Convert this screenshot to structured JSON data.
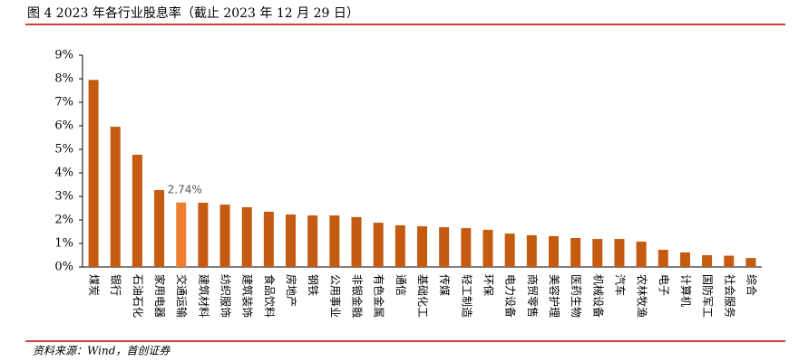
{
  "chart_data": {
    "type": "bar",
    "title": "图 4 2023 年各行业股息率（截止 2023 年 12 月 29 日）",
    "source": "资料来源：Wind，首创证券",
    "categories": [
      "煤炭",
      "银行",
      "石油石化",
      "家用电器",
      "交通运输",
      "建筑材料",
      "纺织服饰",
      "建筑装饰",
      "食品饮料",
      "房地产",
      "钢铁",
      "公用事业",
      "非银金融",
      "有色金属",
      "通信",
      "基础化工",
      "传媒",
      "轻工制造",
      "环保",
      "电力设备",
      "商贸零售",
      "美容护理",
      "医药生物",
      "机械设备",
      "汽车",
      "农林牧渔",
      "电子",
      "计算机",
      "国防军工",
      "社会服务",
      "综合"
    ],
    "values": [
      7.95,
      5.96,
      4.77,
      3.27,
      2.74,
      2.73,
      2.65,
      2.54,
      2.35,
      2.23,
      2.19,
      2.19,
      2.12,
      1.88,
      1.77,
      1.73,
      1.69,
      1.65,
      1.58,
      1.42,
      1.35,
      1.31,
      1.23,
      1.19,
      1.19,
      1.08,
      0.73,
      0.62,
      0.5,
      0.48,
      0.38
    ],
    "value_labels": [
      null,
      null,
      null,
      null,
      "2.74%",
      null,
      null,
      null,
      null,
      null,
      null,
      null,
      null,
      null,
      null,
      null,
      null,
      null,
      null,
      null,
      null,
      null,
      null,
      null,
      null,
      null,
      null,
      null,
      null,
      null,
      null
    ],
    "colors": [
      "#c55a11",
      "#c55a11",
      "#c55a11",
      "#c55a11",
      "#ed7d31",
      "#c55a11",
      "#c55a11",
      "#c55a11",
      "#c55a11",
      "#c55a11",
      "#c55a11",
      "#c55a11",
      "#c55a11",
      "#c55a11",
      "#c55a11",
      "#c55a11",
      "#c55a11",
      "#c55a11",
      "#c55a11",
      "#c55a11",
      "#c55a11",
      "#c55a11",
      "#c55a11",
      "#c55a11",
      "#c55a11",
      "#c55a11",
      "#c55a11",
      "#c55a11",
      "#c55a11",
      "#c55a11",
      "#c55a11"
    ],
    "ylim": [
      0,
      9
    ],
    "yticks": [
      {
        "value": 0,
        "label": "0%"
      },
      {
        "value": 1,
        "label": "1%"
      },
      {
        "value": 2,
        "label": "2%"
      },
      {
        "value": 3,
        "label": "3%"
      },
      {
        "value": 4,
        "label": "4%"
      },
      {
        "value": 5,
        "label": "5%"
      },
      {
        "value": 6,
        "label": "6%"
      },
      {
        "value": 7,
        "label": "7%"
      },
      {
        "value": 8,
        "label": "8%"
      },
      {
        "value": 9,
        "label": "9%"
      }
    ],
    "grid": false
  }
}
